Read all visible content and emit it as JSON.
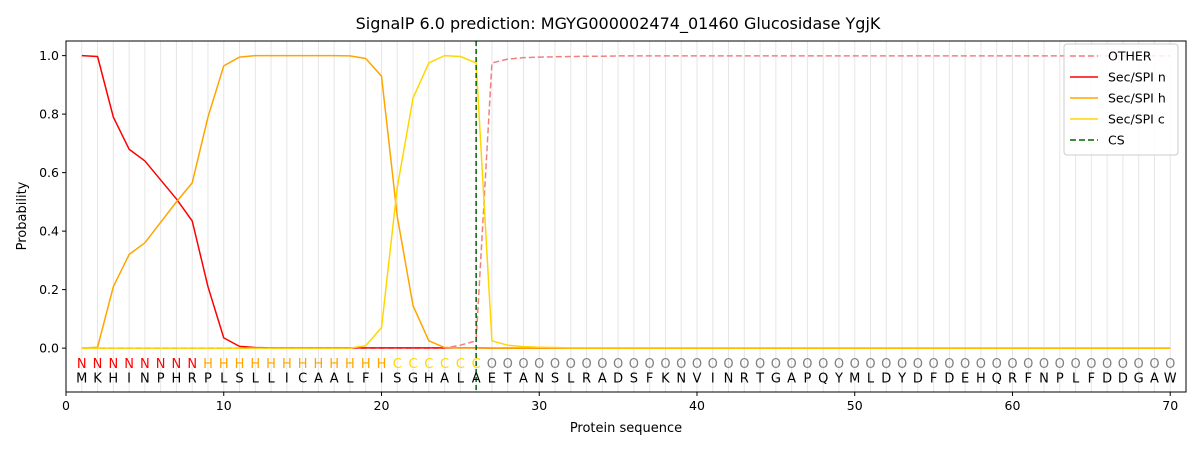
{
  "chart_data": {
    "type": "line",
    "title": "SignalP 6.0 prediction: MGYG000002474_01460 Glucosidase YgjK",
    "xlabel": "Protein sequence",
    "ylabel": "Probability",
    "xlim": [
      0,
      71
    ],
    "ylim": [
      -0.15,
      1.05
    ],
    "xticks": [
      0,
      10,
      20,
      30,
      40,
      50,
      60,
      70
    ],
    "yticks": [
      0.0,
      0.2,
      0.4,
      0.6,
      0.8,
      1.0
    ],
    "grid": "vertical lines at each residue",
    "legend_position": "top-right",
    "sequence": "MKHINPHRPLSLLICAALFISGHALAETANSLRADSFKNVINRTGAPQYMLDYDFDEHQRFNPLFDDGAW",
    "labels": "NNNNNNNNHHHHHHHHHHHHCCCCCCOOOOOOOOOOOOOOOOOOOOOOOOOOOOOOOOOOOOOOOOOOOO",
    "label_colors": {
      "N": "#ff0000",
      "H": "#ffa500",
      "C": "#ffd700",
      "O": "#808080"
    },
    "cs_position": 26,
    "series": [
      {
        "name": "OTHER",
        "color": "#f08080",
        "dash": true,
        "values": [
          0,
          0,
          0,
          0,
          0,
          0,
          0,
          0,
          0,
          0,
          0,
          0,
          0,
          0,
          0,
          0,
          0,
          0,
          0,
          0,
          0,
          0,
          0,
          0,
          0.01,
          0.025,
          0.975,
          0.988,
          0.993,
          0.995,
          0.996,
          0.997,
          0.998,
          0.998,
          0.999,
          0.999,
          0.999,
          0.999,
          0.999,
          0.999,
          0.999,
          0.999,
          0.999,
          0.999,
          0.999,
          0.999,
          0.999,
          0.999,
          0.999,
          0.999,
          0.999,
          0.999,
          0.999,
          0.999,
          0.999,
          0.999,
          0.999,
          0.999,
          0.999,
          0.999,
          0.999,
          0.999,
          0.999,
          0.999,
          0.999,
          0.999,
          0.999,
          0.999,
          0.999,
          0.999
        ]
      },
      {
        "name": "Sec/SPI n",
        "color": "#ff0000",
        "dash": false,
        "values": [
          1.0,
          0.997,
          0.79,
          0.68,
          0.64,
          0.575,
          0.51,
          0.435,
          0.21,
          0.035,
          0.006,
          0.002,
          0.001,
          0.001,
          0.001,
          0.001,
          0.001,
          0.001,
          0.001,
          0.001,
          0.001,
          0.001,
          0.001,
          0.001,
          0.001,
          0.001,
          0,
          0,
          0,
          0,
          0,
          0,
          0,
          0,
          0,
          0,
          0,
          0,
          0,
          0,
          0,
          0,
          0,
          0,
          0,
          0,
          0,
          0,
          0,
          0,
          0,
          0,
          0,
          0,
          0,
          0,
          0,
          0,
          0,
          0,
          0,
          0,
          0,
          0,
          0,
          0,
          0,
          0,
          0,
          0
        ]
      },
      {
        "name": "Sec/SPI h",
        "color": "#ffa500",
        "dash": false,
        "values": [
          0,
          0.003,
          0.21,
          0.32,
          0.36,
          0.43,
          0.5,
          0.565,
          0.79,
          0.965,
          0.995,
          1.0,
          1.0,
          1.0,
          1.0,
          1.0,
          1.0,
          0.999,
          0.99,
          0.93,
          0.45,
          0.145,
          0.025,
          0.002,
          0.001,
          0.001,
          0,
          0,
          0,
          0,
          0,
          0,
          0,
          0,
          0,
          0,
          0,
          0,
          0,
          0,
          0,
          0,
          0,
          0,
          0,
          0,
          0,
          0,
          0,
          0,
          0,
          0,
          0,
          0,
          0,
          0,
          0,
          0,
          0,
          0,
          0,
          0,
          0,
          0,
          0,
          0,
          0,
          0,
          0,
          0
        ]
      },
      {
        "name": "Sec/SPI c",
        "color": "#ffd700",
        "dash": false,
        "values": [
          0,
          0,
          0,
          0,
          0,
          0,
          0,
          0,
          0,
          0,
          0,
          0,
          0,
          0,
          0,
          0,
          0,
          0,
          0.008,
          0.07,
          0.55,
          0.855,
          0.975,
          1.0,
          0.997,
          0.975,
          0.025,
          0.01,
          0.005,
          0.003,
          0.002,
          0.001,
          0.001,
          0.001,
          0.001,
          0.001,
          0.001,
          0.001,
          0.001,
          0.001,
          0.001,
          0.001,
          0.001,
          0.001,
          0.001,
          0.001,
          0.001,
          0.001,
          0.001,
          0.001,
          0.001,
          0.001,
          0.001,
          0.001,
          0.001,
          0.001,
          0.001,
          0.001,
          0.001,
          0.001,
          0.001,
          0.001,
          0.001,
          0.001,
          0.001,
          0.001,
          0.001,
          0.001,
          0.001,
          0.001
        ]
      }
    ],
    "cs_legend": {
      "name": "CS",
      "color": "#006400"
    }
  }
}
